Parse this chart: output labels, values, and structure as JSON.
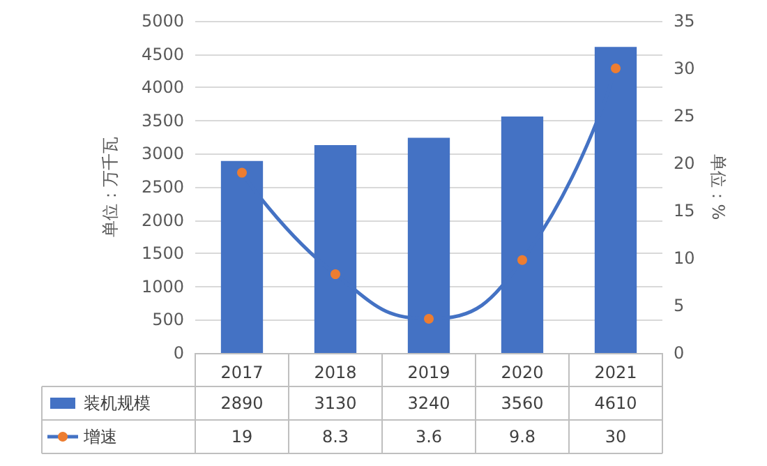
{
  "chart_data": {
    "type": "bar",
    "categories": [
      "2017",
      "2018",
      "2019",
      "2020",
      "2021"
    ],
    "ylabel": "单位：万千瓦",
    "y2label": "单位：%",
    "ylim": [
      0,
      5000
    ],
    "yticks": [
      0,
      500,
      1000,
      1500,
      2000,
      2500,
      3000,
      3500,
      4000,
      4500,
      5000
    ],
    "y2lim": [
      0,
      35
    ],
    "y2ticks": [
      0,
      5,
      10,
      15,
      20,
      25,
      30,
      35
    ],
    "grid": "y",
    "legend": "bottom",
    "data_labels": true,
    "marker": "circle",
    "series": [
      {
        "name": "装机规模",
        "color": "#4472c4",
        "values": [
          2890,
          3130,
          3240,
          3560,
          4610
        ]
      },
      {
        "name": "增速",
        "type": "line",
        "axis": "y2",
        "color": "#4472c4",
        "colors": [
          "#ed7d31",
          "#ed7d31",
          "#ed7d31",
          "#ed7d31",
          "#ed7d31"
        ],
        "values": [
          19,
          8.3,
          3.6,
          9.8,
          30
        ]
      }
    ]
  }
}
